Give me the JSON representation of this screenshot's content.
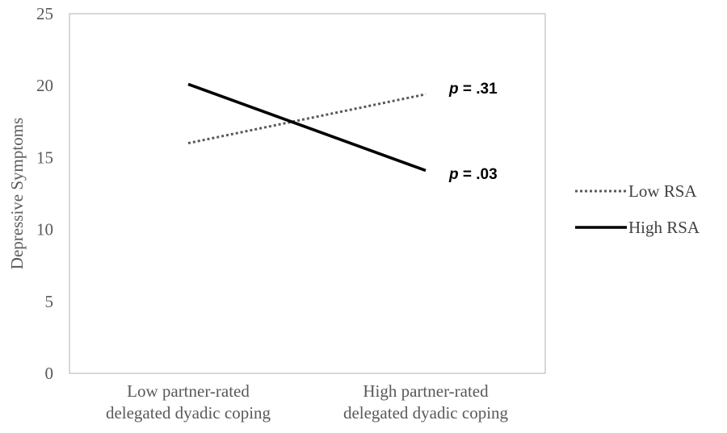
{
  "chart_data": {
    "type": "line",
    "ylabel": "Depressive Symptoms",
    "xlabel": "",
    "ylim": [
      0,
      25
    ],
    "yticks": [
      "0",
      "5",
      "10",
      "15",
      "20",
      "25"
    ],
    "categories": [
      [
        "Low partner-rated",
        "delegated dyadic coping"
      ],
      [
        "High partner-rated",
        "delegated dyadic coping"
      ]
    ],
    "series": [
      {
        "name": "Low RSA",
        "values": [
          16.0,
          19.4
        ],
        "style": "dotted",
        "color": "#595959",
        "annotation": "p = .31"
      },
      {
        "name": "High RSA",
        "values": [
          20.1,
          14.1
        ],
        "style": "solid",
        "color": "#000000",
        "annotation": "p = .03"
      }
    ],
    "grid": false,
    "legend": "right"
  }
}
